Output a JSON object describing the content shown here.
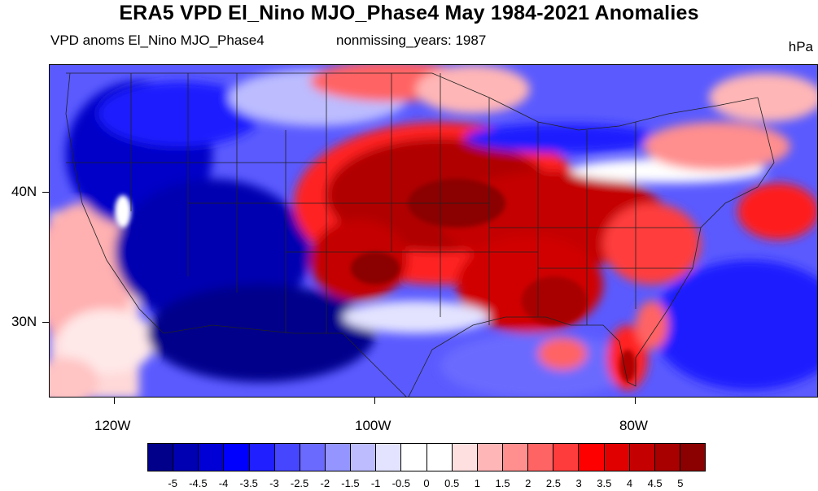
{
  "title": "ERA5 VPD El_Nino MJO_Phase4 May 1984-2021 Anomalies",
  "subtitle_left": "VPD anoms El_Nino MJO_Phase4",
  "subtitle_center": "nonmissing_years: 1987",
  "units": "hPa",
  "axes": {
    "lat_labels": [
      "40N",
      "30N"
    ],
    "lon_labels": [
      "120W",
      "100W",
      "80W"
    ]
  },
  "colorbar": {
    "colors": [
      "#00008b",
      "#0000b3",
      "#0000d6",
      "#0000ff",
      "#1f1fff",
      "#4646ff",
      "#6a6aff",
      "#9595ff",
      "#bcbcff",
      "#e3e3ff",
      "#ffffff",
      "#ffffff",
      "#ffe0e0",
      "#ffb6b6",
      "#ff8e8e",
      "#ff6464",
      "#ff3c3c",
      "#ff0000",
      "#e00000",
      "#c40000",
      "#a80000",
      "#8b0000"
    ],
    "labels": [
      "-5",
      "-4.5",
      "-4",
      "-3.5",
      "-3",
      "-2.5",
      "-2",
      "-1.5",
      "-1",
      "-0.5",
      "0",
      "0.5",
      "1",
      "1.5",
      "2",
      "2.5",
      "3",
      "3.5",
      "4",
      "4.5",
      "5"
    ]
  }
}
